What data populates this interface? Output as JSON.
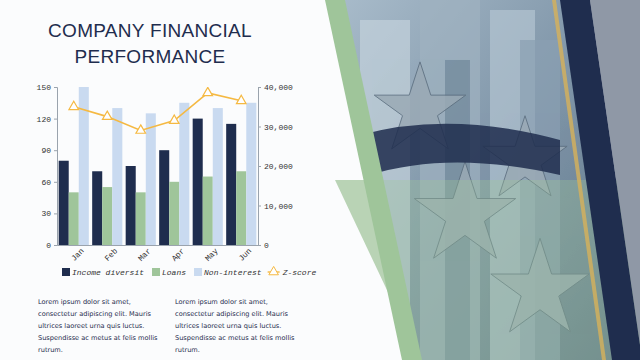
{
  "chart_data": {
    "type": "bar",
    "title": "COMPANY FINANCIAL PERFORMANCE",
    "categories": [
      "Jan",
      "Feb",
      "Mar",
      "Apr",
      "May",
      "Jun"
    ],
    "series": [
      {
        "name": "Income diversit",
        "color": "#1f2d4e",
        "values": [
          80,
          70,
          75,
          90,
          120,
          115
        ]
      },
      {
        "name": "Loans",
        "color": "#9fc59a",
        "values": [
          50,
          55,
          50,
          60,
          65,
          70
        ]
      },
      {
        "name": "Non-interest",
        "color": "#c9daf0",
        "values": [
          150,
          130,
          125,
          135,
          130,
          135
        ]
      },
      {
        "name": "Z-score",
        "color": "#f5b942",
        "type": "line",
        "marker": "triangle",
        "axis": "y2",
        "values": [
          35000,
          32500,
          29000,
          31500,
          38500,
          36500
        ]
      }
    ],
    "ylim": [
      0,
      150
    ],
    "yticks": [
      0,
      30,
      60,
      90,
      120,
      150
    ],
    "y2lim": [
      0,
      40000
    ],
    "y2ticks": [
      0,
      {
        "value": 10000,
        "label": "10,000"
      },
      {
        "value": 20000,
        "label": "20,000"
      },
      {
        "value": 30000,
        "label": "30,000"
      },
      {
        "value": 40000,
        "label": "40,000"
      }
    ],
    "grid": false,
    "legend": "bottom"
  },
  "paragraphs": [
    "Lorem ipsum dolor sit amet, consectetur adipiscing elit. Mauris ultrices laoreet urna quis luctus. Suspendisse ac metus at felis mollis rutrum.",
    "Lorem ipsum dolor sit amet, consectetur adipiscing elit. Mauris ultrices laoreet urna quis luctus. Suspendisse ac metus at felis mollis rutrum."
  ]
}
